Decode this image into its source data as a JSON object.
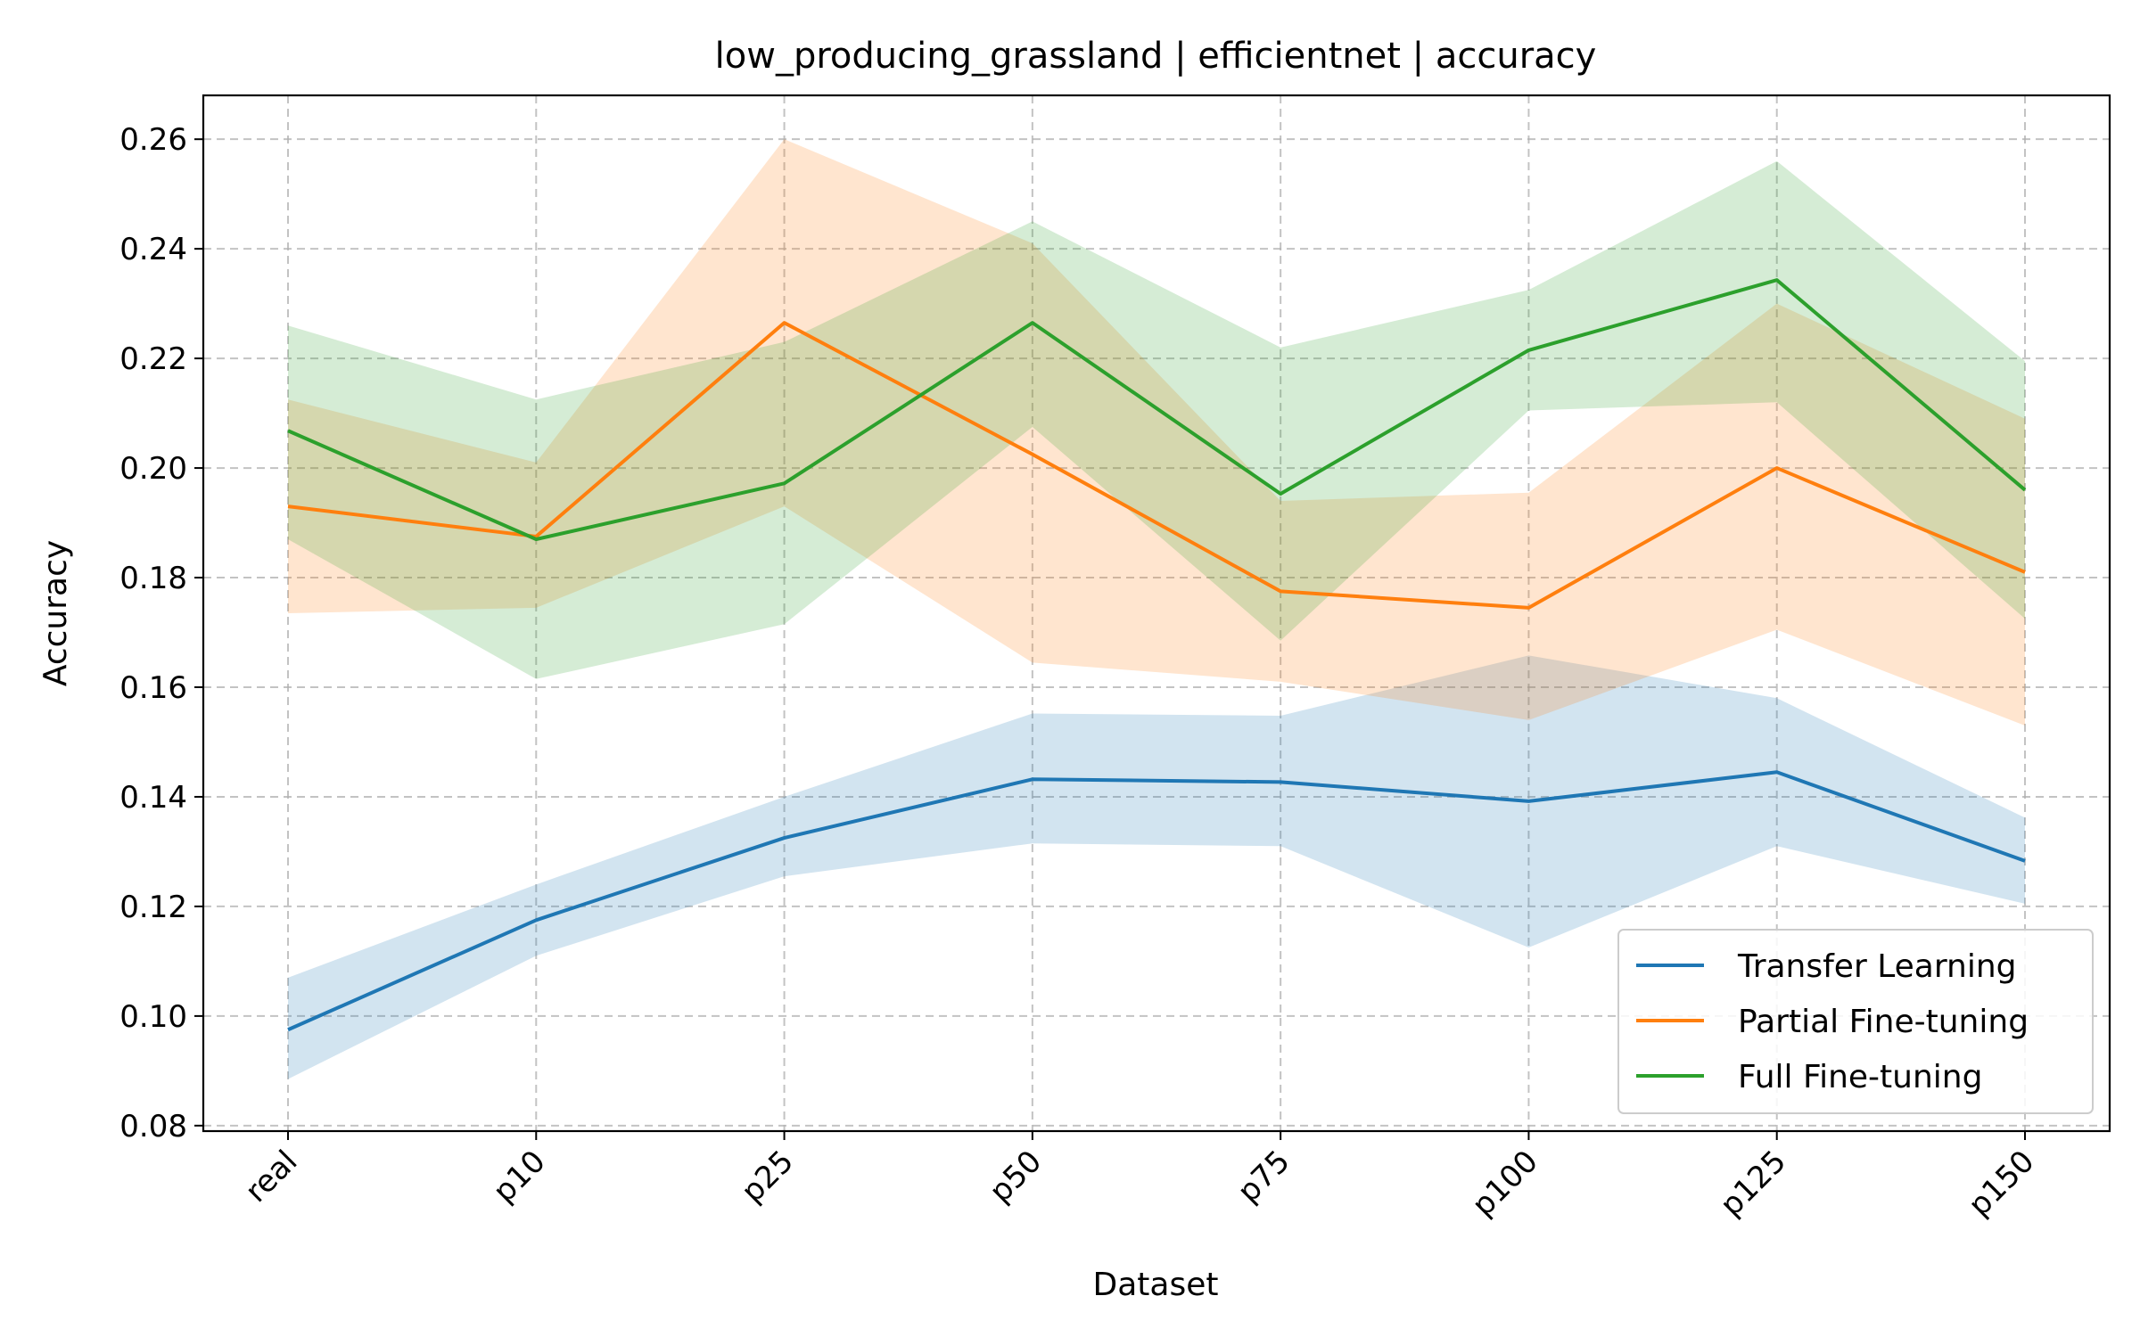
{
  "chart_data": {
    "type": "line",
    "title": "low_producing_grassland | efficientnet | accuracy",
    "xlabel": "Dataset",
    "ylabel": "Accuracy",
    "categories": [
      "real",
      "p10",
      "p25",
      "p50",
      "p75",
      "p100",
      "p125",
      "p150"
    ],
    "ylim": [
      0.079,
      0.268
    ],
    "yticks": [
      0.08,
      0.1,
      0.12,
      0.14,
      0.16,
      0.18,
      0.2,
      0.22,
      0.24,
      0.26
    ],
    "ytick_labels": [
      "0.08",
      "0.10",
      "0.12",
      "0.14",
      "0.16",
      "0.18",
      "0.20",
      "0.22",
      "0.24",
      "0.26"
    ],
    "grid": true,
    "legend_position": "lower right",
    "series": [
      {
        "name": "Transfer Learning",
        "color": "#1f77b4",
        "values": [
          0.0975,
          0.1175,
          0.1325,
          0.1432,
          0.1427,
          0.1392,
          0.1445,
          0.1283
        ],
        "lower": [
          0.0885,
          0.111,
          0.1255,
          0.1315,
          0.131,
          0.1125,
          0.131,
          0.1205
        ],
        "upper": [
          0.107,
          0.124,
          0.14,
          0.1552,
          0.1548,
          0.1658,
          0.158,
          0.1362
        ]
      },
      {
        "name": "Partial Fine-tuning",
        "color": "#ff7f0e",
        "values": [
          0.193,
          0.1875,
          0.2265,
          0.2025,
          0.1775,
          0.1745,
          0.2,
          0.181
        ],
        "lower": [
          0.1735,
          0.1745,
          0.193,
          0.1645,
          0.161,
          0.154,
          0.1705,
          0.153
        ],
        "upper": [
          0.2125,
          0.201,
          0.26,
          0.241,
          0.194,
          0.1955,
          0.23,
          0.209
        ]
      },
      {
        "name": "Full Fine-tuning",
        "color": "#2ca02c",
        "values": [
          0.2068,
          0.187,
          0.1972,
          0.2265,
          0.1953,
          0.2215,
          0.2343,
          0.196
        ],
        "lower": [
          0.187,
          0.1615,
          0.1715,
          0.2075,
          0.1685,
          0.2105,
          0.212,
          0.1725
        ],
        "upper": [
          0.226,
          0.2125,
          0.223,
          0.245,
          0.222,
          0.2325,
          0.256,
          0.2195
        ]
      }
    ]
  }
}
